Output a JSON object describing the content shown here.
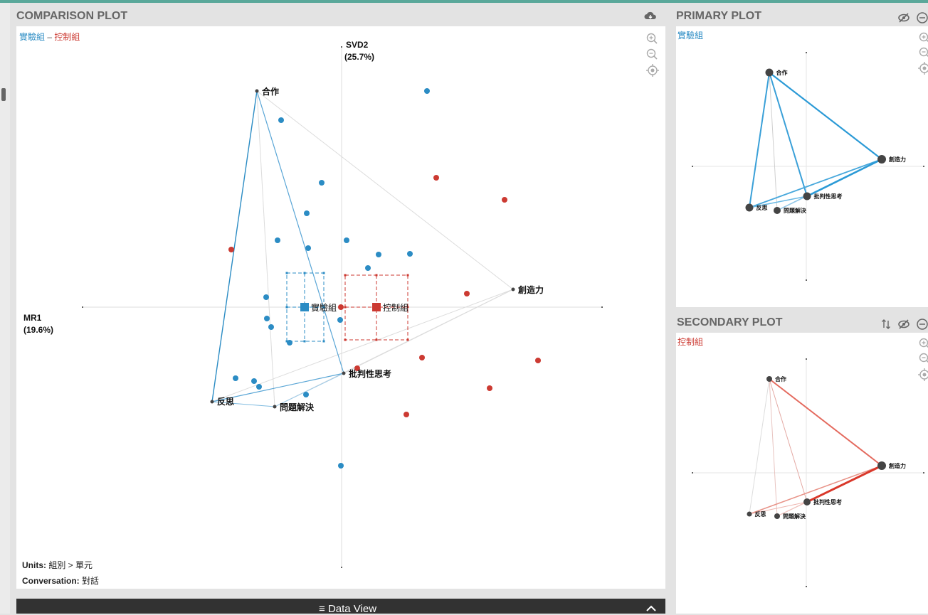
{
  "panels": {
    "comparison": {
      "title": "COMPARISON PLOT",
      "legend_a": "實驗組",
      "legend_sep": " – ",
      "legend_b": "控制組",
      "axis_y_label": "SVD2",
      "axis_y_pct": "(25.7%)",
      "axis_x_label": "MR1",
      "axis_x_pct": "(19.6%)",
      "group_a_label": "實驗組",
      "group_b_label": "控制組",
      "footer_units_key": "Units:",
      "footer_units_val": "組別 > 單元",
      "footer_conv_key": "Conversation:",
      "footer_conv_val": "對話"
    },
    "primary": {
      "title": "PRIMARY PLOT",
      "legend": "實驗組"
    },
    "secondary": {
      "title": "SECONDARY PLOT",
      "legend": "控制組"
    }
  },
  "data_view": {
    "label": "Data View",
    "icon": "menu-icon",
    "toggle_icon": "chevron-up-icon"
  },
  "colors": {
    "group_a": "#2b8cc4",
    "group_b": "#cc3a32",
    "node": "#444444",
    "axis": "#dddddd"
  },
  "nodes": [
    {
      "id": "hezuo",
      "label": "合作"
    },
    {
      "id": "chuangzaoli",
      "label": "創造力"
    },
    {
      "id": "pipan",
      "label": "批判性思考"
    },
    {
      "id": "fansi",
      "label": "反思"
    },
    {
      "id": "wenti",
      "label": "問題解決"
    }
  ]
}
